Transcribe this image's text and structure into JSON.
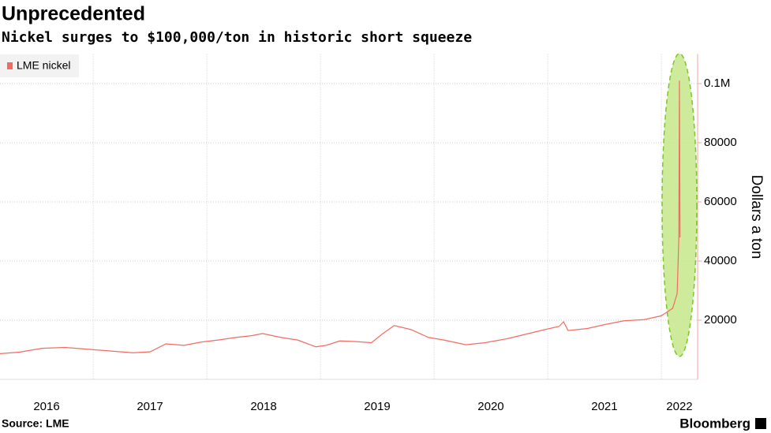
{
  "chart_data": {
    "type": "line",
    "title": "Unprecedented",
    "subtitle": "Nickel surges to $100,000/ton in historic short squeeze",
    "y_label": "Dollars a ton",
    "source": "Source: LME",
    "brand": "Bloomberg",
    "series": [
      {
        "name": "LME nickel",
        "color": "#f26b63",
        "x": [
          2016.18,
          2016.35,
          2016.55,
          2016.75,
          2016.95,
          2017.15,
          2017.35,
          2017.5,
          2017.64,
          2017.8,
          2017.95,
          2018.1,
          2018.26,
          2018.4,
          2018.49,
          2018.65,
          2018.8,
          2018.96,
          2019.05,
          2019.17,
          2019.3,
          2019.45,
          2019.55,
          2019.65,
          2019.8,
          2019.95,
          2020.1,
          2020.28,
          2020.45,
          2020.65,
          2020.8,
          2020.95,
          2021.1,
          2021.14,
          2021.18,
          2021.35,
          2021.5,
          2021.67,
          2021.85,
          2022.0,
          2022.1,
          2022.14,
          2022.155,
          2022.16,
          2022.165
        ],
        "values": [
          8700,
          9200,
          10500,
          10800,
          10200,
          9600,
          9000,
          9300,
          12000,
          11500,
          12600,
          13300,
          14200,
          14800,
          15500,
          14200,
          13300,
          11000,
          11500,
          13000,
          12800,
          12400,
          15500,
          18200,
          16800,
          14200,
          13200,
          11700,
          12400,
          13800,
          15200,
          16600,
          17900,
          19500,
          16500,
          17200,
          18500,
          19800,
          20200,
          21500,
          24000,
          29000,
          48000,
          101000,
          48000
        ]
      }
    ],
    "xlim": [
      2016.18,
      2022.32
    ],
    "xticks": [
      {
        "value": 2016,
        "label": "2016"
      },
      {
        "value": 2017,
        "label": "2017"
      },
      {
        "value": 2018,
        "label": "2018"
      },
      {
        "value": 2019,
        "label": "2019"
      },
      {
        "value": 2020,
        "label": "2020"
      },
      {
        "value": 2021,
        "label": "2021"
      },
      {
        "value": 2022,
        "label": "2022"
      }
    ],
    "ylim": [
      0,
      110000
    ],
    "yticks": [
      20000,
      40000,
      60000,
      80000,
      {
        "value": 100000,
        "label": "0.1M"
      }
    ],
    "grid": true
  }
}
